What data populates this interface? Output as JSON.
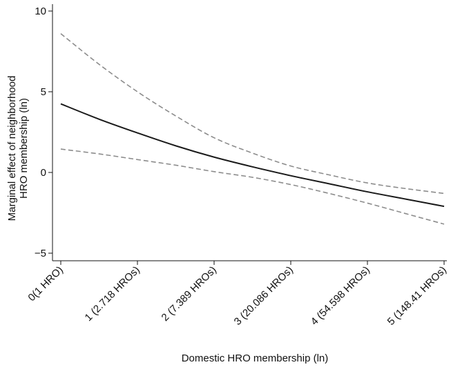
{
  "chart_data": {
    "type": "line",
    "title": "",
    "xlabel": "Domestic HRO membership (ln)",
    "ylabel_lines": [
      "Marginal effect of neighborhood",
      "HRO membership (ln)"
    ],
    "xlim": [
      0,
      5
    ],
    "ylim": [
      -5.4,
      10.2
    ],
    "grid": false,
    "legend": "none",
    "x_ticks": [
      {
        "value": 0,
        "label": "0(1 HRO)"
      },
      {
        "value": 1,
        "label": "1 (2.718 HROs)"
      },
      {
        "value": 2,
        "label": "2 (7.389 HROs)"
      },
      {
        "value": 3,
        "label": "3 (20.086 HROs)"
      },
      {
        "value": 4,
        "label": "4 (54.598 HROs)"
      },
      {
        "value": 5,
        "label": "5 (148.41 HROs)"
      }
    ],
    "y_ticks": [
      {
        "value": 10,
        "label": "10"
      },
      {
        "value": 5,
        "label": "5"
      },
      {
        "value": 0,
        "label": "0"
      },
      {
        "value": -5,
        "label": "−5"
      }
    ],
    "series": [
      {
        "role": "estimate",
        "color": "#1a1a1a",
        "dash": "solid",
        "x": [
          0,
          0.5,
          1,
          1.5,
          2,
          2.5,
          3,
          3.5,
          4,
          4.5,
          5
        ],
        "y": [
          4.25,
          3.3,
          2.45,
          1.65,
          0.95,
          0.35,
          -0.2,
          -0.7,
          -1.2,
          -1.65,
          -2.1
        ]
      },
      {
        "role": "upper-ci",
        "color": "#8c8c8c",
        "dash": "dashed",
        "x": [
          0,
          0.5,
          1,
          1.5,
          2,
          2.5,
          3,
          3.5,
          4,
          4.5,
          5
        ],
        "y": [
          8.6,
          6.7,
          5.0,
          3.5,
          2.15,
          1.2,
          0.4,
          -0.15,
          -0.65,
          -1.0,
          -1.3
        ]
      },
      {
        "role": "lower-ci",
        "color": "#8c8c8c",
        "dash": "dashed",
        "x": [
          0,
          0.5,
          1,
          1.5,
          2,
          2.5,
          3,
          3.5,
          4,
          4.5,
          5
        ],
        "y": [
          1.45,
          1.15,
          0.8,
          0.45,
          0.05,
          -0.3,
          -0.75,
          -1.3,
          -1.9,
          -2.55,
          -3.2
        ]
      }
    ]
  }
}
